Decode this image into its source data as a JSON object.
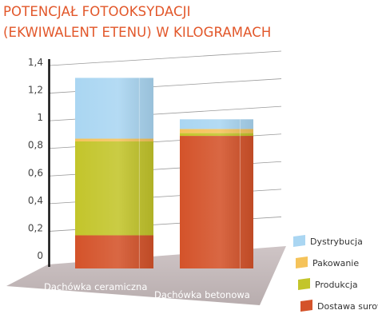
{
  "chart_data": {
    "type": "bar",
    "stacked": true,
    "title": [
      "POTENCJAŁ FOTOOKSYDACJI",
      "(EKWIWALENT ETENU) W KILOGRAMACH"
    ],
    "categories": [
      "Dachówka ceramiczna",
      "Dachówka  betonowa"
    ],
    "series": [
      {
        "name": "Dostawa surowców",
        "values": [
          0.24,
          0.96
        ],
        "color": "#d4532a"
      },
      {
        "name": "Produkcja",
        "values": [
          0.68,
          0.02
        ],
        "color": "#c3c52b"
      },
      {
        "name": "Pakowanie",
        "values": [
          0.02,
          0.03
        ],
        "color": "#f5c35a"
      },
      {
        "name": "Dystrybucja",
        "values": [
          0.44,
          0.07
        ],
        "color": "#aad6f2"
      }
    ],
    "yticks": [
      "0",
      "0,2",
      "0,4",
      "0,6",
      "0,8",
      "1",
      "1,2",
      "1,4"
    ],
    "ylim": [
      0,
      1.4
    ],
    "grid": true,
    "legend_position": "bottom-right",
    "accent_color": "#e2572a"
  }
}
